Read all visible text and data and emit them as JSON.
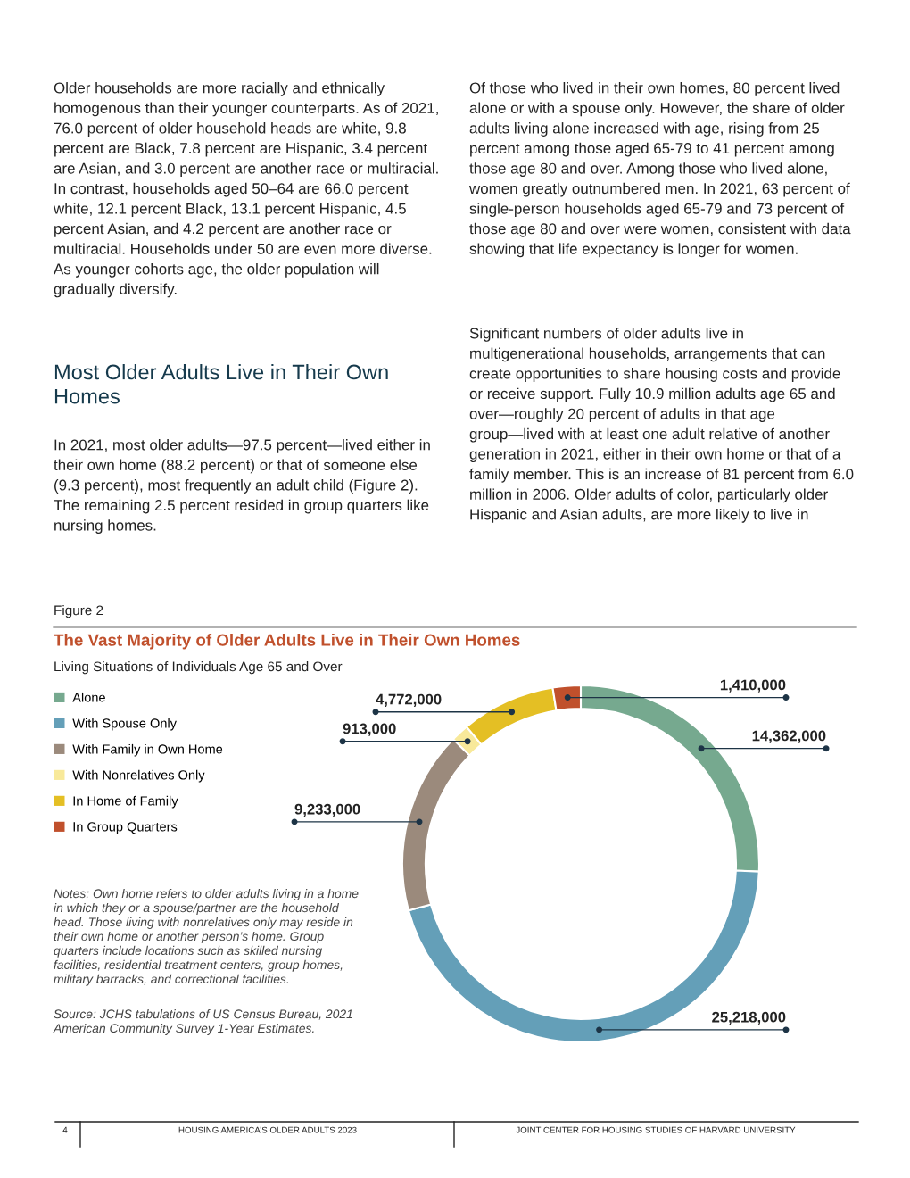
{
  "chart_data": {
    "type": "donut",
    "title": "The Vast Majority of Older Adults Live in Their Own Homes",
    "subtitle": "Living Situations of Individuals Age 65 and Over",
    "categories": [
      "Alone",
      "With Spouse Only",
      "With Family in Own Home",
      "With Nonrelatives Only",
      "In Home of Family",
      "In Group Quarters"
    ],
    "values": [
      14362000,
      25218000,
      9233000,
      913000,
      4772000,
      1410000
    ],
    "colors": [
      "#76a98f",
      "#649fb8",
      "#9b8a7c",
      "#f8e99a",
      "#e4bf24",
      "#c0502c"
    ],
    "value_labels": [
      "14,362,000",
      "25,218,000",
      "9,233,000",
      "913,000",
      "4,772,000",
      "1,410,000"
    ],
    "legend": "top left",
    "annotations": [
      "Older households are more racially and ethnically homogenous than their younger counterparts. As of 2021, 76.0 percent of older household heads are white, 9.8 percent are Black, 7.8 percent are Hispanic, 3.4 percent are Asian, and 3.0 percent are another race or multiracial. In contrast, households aged 50–64 are 66.0 percent white, 12.1 percent Black, 13.1 percent Hispanic, 4.5 percent Asian, and 4.2 percent are another race or multiracial. Households under 50 are even more diverse. As younger cohorts age, the older population will gradually diversify.",
      "Most Older Adults Live in Their Own Homes",
      "In 2021, most older adults—97.5 percent—lived either in their own home (88.2 percent) or that of someone else (9.3 percent), most frequently an adult child (Figure 2). The remaining 2.5 percent resided in group quarters like nursing homes.",
      "Of those who lived in their own homes, 80 percent lived alone or with a spouse only. However, the share of older adults living alone increased with age, rising from 25 percent among those aged 65-79 to 41 percent among those age 80 and over. Among those who lived alone, women greatly outnumbered men. In 2021, 63 percent of single-person households aged 65-79 and 73 percent of those age 80 and over were women, consistent with data showing that life expectancy is longer for women.",
      "Significant numbers of older adults live in multigenerational households, arrangements that can create opportunities to share housing costs and provide or receive support. Fully 10.9 million adults age 65 and over—roughly 20 percent of adults in that age group—lived with at least one adult relative of another generation in 2021, either in their own home or that of a family member. This is an increase of 81 percent from 6.0 million in 2006. Older adults of color, particularly older Hispanic and Asian adults, are more likely to live in",
      "Figure 2",
      "Notes: Own home refers to older adults living in a home in which they or a spouse/partner are the household head. Those living with nonrelatives only may reside in their own home or another person’s home. Group quarters include locations such as skilled nursing facilities, residential treatment centers, group homes, military barracks, and correctional facilities.",
      "Source: JCHS tabulations of US Census Bureau, 2021 American Community Survey 1-Year Estimates.",
      "4",
      "HOUSING AMERICA’S OLDER ADULTS 2023",
      "JOINT CENTER FOR HOUSING STUDIES OF HARVARD UNIVERSITY"
    ]
  }
}
